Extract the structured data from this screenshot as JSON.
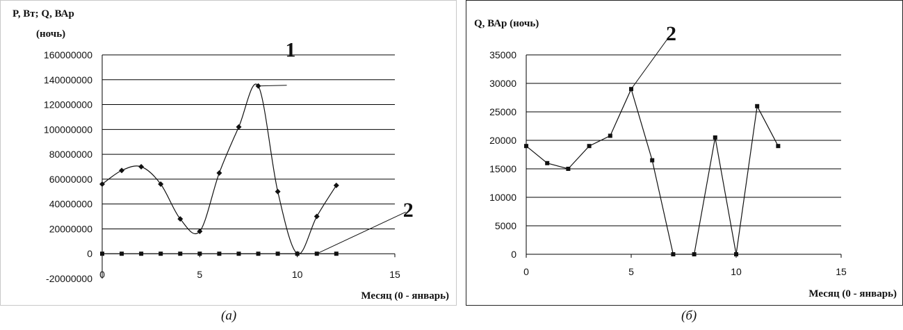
{
  "chart_data": [
    {
      "type": "line",
      "panel": "a",
      "ylabel_line1": "P, Вт; Q, ВАр",
      "ylabel_line2": "(ночь)",
      "xlabel": "Месяц (0 - январь)",
      "xlim": [
        0,
        15
      ],
      "xticks": [
        0,
        5,
        10,
        15
      ],
      "ylim": [
        -20000000,
        160000000
      ],
      "yticks": [
        -20000000,
        0,
        20000000,
        40000000,
        60000000,
        80000000,
        100000000,
        120000000,
        140000000,
        160000000
      ],
      "grid": true,
      "background": "#ffffff",
      "border_color": "#c8c8c8",
      "series": [
        {
          "id": "1",
          "smooth": true,
          "marker": "diamond",
          "x": [
            0,
            1,
            2,
            3,
            4,
            5,
            6,
            7,
            8,
            9,
            10,
            11,
            12
          ],
          "values": [
            56000000,
            67000000,
            70000000,
            56000000,
            28000000,
            18000000,
            65000000,
            102000000,
            135000000,
            50000000,
            0,
            30000000,
            55000000
          ]
        },
        {
          "id": "2",
          "smooth": false,
          "marker": "square",
          "x": [
            0,
            1,
            2,
            3,
            4,
            5,
            6,
            7,
            8,
            9,
            10,
            11,
            12
          ],
          "values": [
            19000,
            16000,
            15000,
            19000,
            20800,
            29000,
            16500,
            0,
            0,
            20500,
            0,
            26000,
            19000
          ]
        }
      ],
      "annotations": [
        {
          "text": "1",
          "series": "1",
          "point_index": 8
        },
        {
          "text": "2",
          "series": "2",
          "point_index": 11
        }
      ],
      "caption": "(а)"
    },
    {
      "type": "line",
      "panel": "b",
      "ylabel": "Q, ВАр (ночь)",
      "xlabel": "Месяц (0 - январь)",
      "xlim": [
        0,
        15
      ],
      "xticks": [
        0,
        5,
        10,
        15
      ],
      "ylim": [
        0,
        35000
      ],
      "yticks": [
        0,
        5000,
        10000,
        15000,
        20000,
        25000,
        30000,
        35000
      ],
      "grid": true,
      "background": "#ffffff",
      "border_color": "#222222",
      "series": [
        {
          "id": "2",
          "smooth": false,
          "marker": "square",
          "x": [
            0,
            1,
            2,
            3,
            4,
            5,
            6,
            7,
            8,
            9,
            10,
            11,
            12
          ],
          "values": [
            19000,
            16000,
            15000,
            19000,
            20800,
            29000,
            16500,
            0,
            0,
            20500,
            0,
            26000,
            19000
          ]
        }
      ],
      "annotations": [
        {
          "text": "2",
          "series": "2",
          "point_index": 5
        }
      ],
      "caption": "(б)"
    }
  ]
}
